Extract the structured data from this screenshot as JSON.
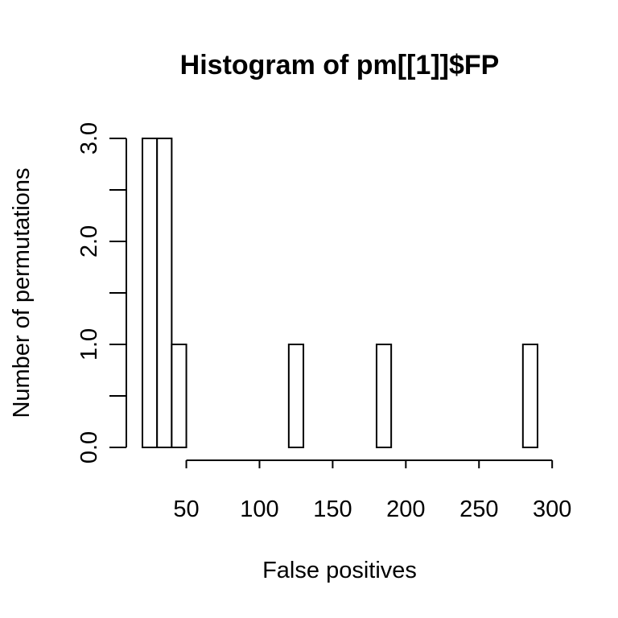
{
  "chart_data": {
    "type": "bar",
    "title": "Histogram of pm[[1]]$FP",
    "xlabel": "False positives",
    "ylabel": "Number of permutations",
    "bin_width": 10,
    "bins": [
      {
        "start": 20,
        "end": 30,
        "count": 3
      },
      {
        "start": 30,
        "end": 40,
        "count": 3
      },
      {
        "start": 40,
        "end": 50,
        "count": 1
      },
      {
        "start": 50,
        "end": 60,
        "count": 0
      },
      {
        "start": 60,
        "end": 70,
        "count": 0
      },
      {
        "start": 70,
        "end": 80,
        "count": 0
      },
      {
        "start": 80,
        "end": 90,
        "count": 0
      },
      {
        "start": 90,
        "end": 100,
        "count": 0
      },
      {
        "start": 100,
        "end": 110,
        "count": 0
      },
      {
        "start": 110,
        "end": 120,
        "count": 0
      },
      {
        "start": 120,
        "end": 130,
        "count": 1
      },
      {
        "start": 130,
        "end": 140,
        "count": 0
      },
      {
        "start": 140,
        "end": 150,
        "count": 0
      },
      {
        "start": 150,
        "end": 160,
        "count": 0
      },
      {
        "start": 160,
        "end": 170,
        "count": 0
      },
      {
        "start": 170,
        "end": 180,
        "count": 0
      },
      {
        "start": 180,
        "end": 190,
        "count": 1
      },
      {
        "start": 190,
        "end": 200,
        "count": 0
      },
      {
        "start": 200,
        "end": 210,
        "count": 0
      },
      {
        "start": 210,
        "end": 220,
        "count": 0
      },
      {
        "start": 220,
        "end": 230,
        "count": 0
      },
      {
        "start": 230,
        "end": 240,
        "count": 0
      },
      {
        "start": 240,
        "end": 250,
        "count": 0
      },
      {
        "start": 250,
        "end": 260,
        "count": 0
      },
      {
        "start": 260,
        "end": 270,
        "count": 0
      },
      {
        "start": 270,
        "end": 280,
        "count": 0
      },
      {
        "start": 280,
        "end": 290,
        "count": 1
      }
    ],
    "x_ticks": [
      50,
      100,
      150,
      200,
      250,
      300
    ],
    "x_tick_labels": [
      "50",
      "100",
      "150",
      "200",
      "250",
      "300"
    ],
    "y_major_ticks": [
      0,
      1,
      2,
      3
    ],
    "y_tick_labels": [
      "0.0",
      "1.0",
      "2.0",
      "3.0"
    ],
    "y_minor_ticks": [
      0.5,
      1.5,
      2.5
    ],
    "xlim": [
      20,
      290
    ],
    "ylim": [
      0,
      3
    ],
    "grid": false,
    "colors": {
      "bar_fill": "#ffffff",
      "bar_stroke": "#000000"
    }
  }
}
